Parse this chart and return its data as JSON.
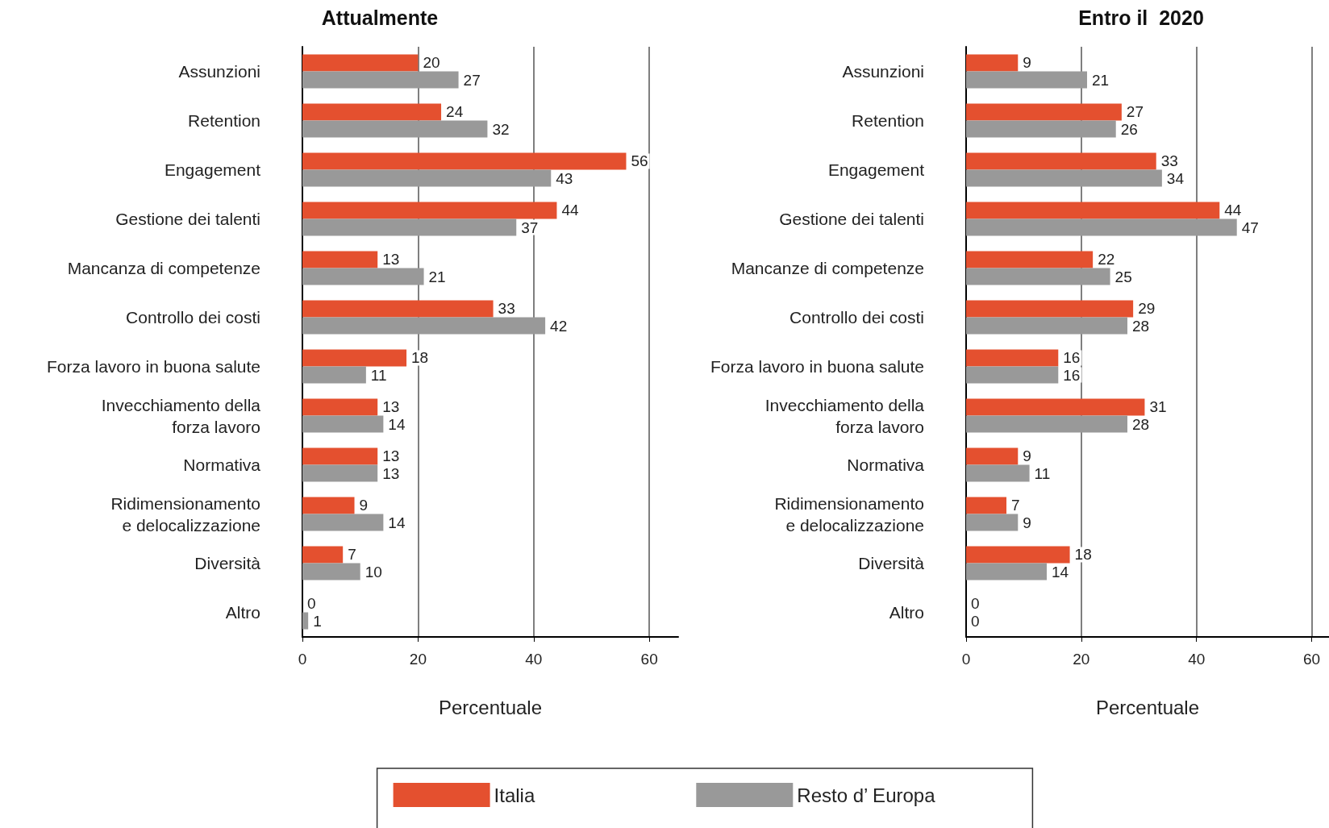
{
  "chart_data": [
    {
      "type": "bar",
      "orientation": "horizontal",
      "title": "Attualmente",
      "xlabel": "Percentuale",
      "categories": [
        "Assunzioni",
        "Retention",
        "Engagement",
        "Gestione dei talenti",
        "Mancanza di competenze",
        "Controllo dei costi",
        "Forza lavoro in buona salute",
        "Invecchiamento della\nforza lavoro",
        "Normativa",
        "Ridimensionamento\ne delocalizzazione",
        "Diversità",
        "Altro"
      ],
      "series": [
        {
          "name": "Italia",
          "color": "#e4502f",
          "values": [
            20,
            24,
            56,
            44,
            13,
            33,
            18,
            13,
            13,
            9,
            7,
            0
          ]
        },
        {
          "name": "Resto d’ Europa",
          "color": "#999999",
          "values": [
            27,
            32,
            43,
            37,
            21,
            42,
            11,
            14,
            13,
            14,
            10,
            1
          ]
        }
      ],
      "xlim": [
        0,
        65
      ],
      "xticks": [
        0,
        20,
        40,
        60
      ],
      "grid": "x",
      "data_labels": true,
      "legend": "bottom"
    },
    {
      "type": "bar",
      "orientation": "horizontal",
      "title": "Entro il  2020",
      "xlabel": "Percentuale",
      "categories": [
        "Assunzioni",
        "Retention",
        "Engagement",
        "Gestione dei talenti",
        "Mancanze di competenze",
        "Controllo dei costi",
        "Forza lavoro in buona salute",
        "Invecchiamento della\nforza lavoro",
        "Normativa",
        "Ridimensionamento\ne delocalizzazione",
        "Diversità",
        "Altro"
      ],
      "series": [
        {
          "color": "#e4502f",
          "values": [
            9,
            27,
            33,
            44,
            22,
            29,
            16,
            31,
            9,
            7,
            18,
            0
          ]
        },
        {
          "color": "#999999",
          "values": [
            21,
            26,
            34,
            47,
            25,
            28,
            16,
            28,
            11,
            9,
            14,
            0
          ]
        }
      ],
      "xlim": [
        0,
        63
      ],
      "xticks": [
        0,
        20,
        40,
        60
      ],
      "grid": "x",
      "data_labels": true
    }
  ]
}
